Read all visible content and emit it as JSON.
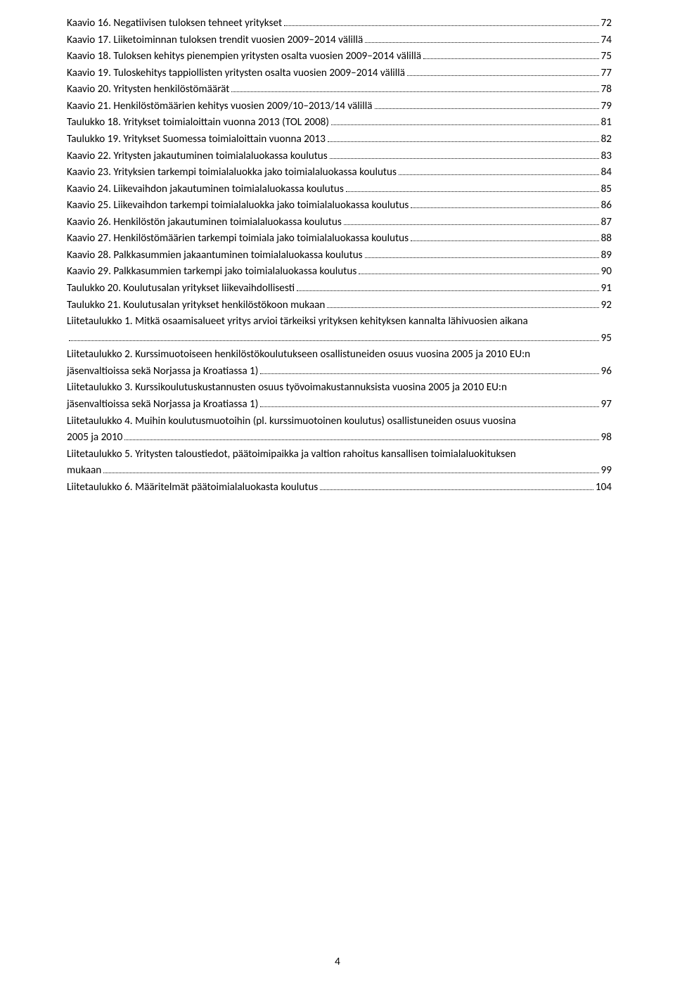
{
  "toc": [
    {
      "label": "Kaavio 16. Negatiivisen tuloksen tehneet yritykset",
      "page": "72",
      "wrap": false
    },
    {
      "label": "Kaavio 17. Liiketoiminnan tuloksen trendit vuosien 2009–2014 välillä",
      "page": "74",
      "wrap": false
    },
    {
      "label": "Kaavio 18. Tuloksen kehitys pienempien yritysten osalta vuosien 2009–2014 välillä",
      "page": "75",
      "wrap": false
    },
    {
      "label": "Kaavio 19. Tuloskehitys tappiollisten yritysten osalta vuosien 2009–2014 välillä",
      "page": "77",
      "wrap": false
    },
    {
      "label": "Kaavio 20. Yritysten henkilöstömäärät",
      "page": "78",
      "wrap": false
    },
    {
      "label": "Kaavio 21. Henkilöstömäärien kehitys vuosien 2009/10–2013/14 välillä",
      "page": "79",
      "wrap": false
    },
    {
      "label": "Taulukko 18. Yritykset toimialoittain vuonna 2013 (TOL 2008)",
      "page": "81",
      "wrap": false
    },
    {
      "label": "Taulukko 19. Yritykset Suomessa toimialoittain vuonna 2013",
      "page": "82",
      "wrap": false
    },
    {
      "label": "Kaavio 22. Yritysten jakautuminen toimialaluokassa koulutus",
      "page": "83",
      "wrap": false
    },
    {
      "label": "Kaavio 23. Yrityksien tarkempi toimialaluokka jako toimialaluokassa koulutus",
      "page": "84",
      "wrap": false
    },
    {
      "label": "Kaavio 24. Liikevaihdon jakautuminen toimialaluokassa koulutus",
      "page": "85",
      "wrap": false
    },
    {
      "label": "Kaavio 25. Liikevaihdon tarkempi toimialaluokka jako toimialaluokassa koulutus",
      "page": "86",
      "wrap": false
    },
    {
      "label": "Kaavio 26. Henkilöstön jakautuminen toimialaluokassa koulutus",
      "page": "87",
      "wrap": false
    },
    {
      "label": "Kaavio 27. Henkilöstömäärien tarkempi toimiala jako toimialaluokassa koulutus",
      "page": "88",
      "wrap": false
    },
    {
      "label": "Kaavio 28. Palkkasummien jakaantuminen toimialaluokassa koulutus",
      "page": "89",
      "wrap": false
    },
    {
      "label": "Kaavio 29. Palkkasummien tarkempi jako toimialaluokassa koulutus",
      "page": "90",
      "wrap": false
    },
    {
      "label": "Taulukko 20. Koulutusalan yritykset liikevaihdollisesti",
      "page": "91",
      "wrap": false
    },
    {
      "label": "Taulukko 21. Koulutusalan yritykset henkilöstökoon mukaan",
      "page": "92",
      "wrap": false
    },
    {
      "label": "Liitetaulukko 1. Mitkä osaamisalueet yritys arvioi tärkeiksi yrityksen kehityksen kannalta lähivuosien aikana",
      "page": "95",
      "wrap": true,
      "cont": ""
    },
    {
      "label": "Liitetaulukko 2. Kurssimuotoiseen henkilöstökoulutukseen osallistuneiden osuus vuosina 2005 ja 2010 EU:n",
      "page": "96",
      "wrap": true,
      "cont": "jäsenvaltioissa sekä Norjassa ja Kroatiassa 1)"
    },
    {
      "label": "Liitetaulukko 3. Kurssikoulutuskustannusten osuus työvoimakustannuksista vuosina 2005 ja 2010 EU:n",
      "page": "97",
      "wrap": true,
      "cont": "jäsenvaltioissa sekä Norjassa ja Kroatiassa 1)"
    },
    {
      "label": "Liitetaulukko 4. Muihin koulutusmuotoihin (pl. kurssimuotoinen koulutus) osallistuneiden osuus vuosina",
      "page": "98",
      "wrap": true,
      "cont": "2005 ja 2010"
    },
    {
      "label": "Liitetaulukko 5. Yritysten taloustiedot, päätoimipaikka ja valtion rahoitus kansallisen toimialaluokituksen",
      "page": "99",
      "wrap": true,
      "cont": "mukaan"
    },
    {
      "label": "Liitetaulukko 6. Määritelmät päätoimialaluokasta koulutus",
      "page": "104",
      "wrap": false
    }
  ],
  "footer": "4"
}
